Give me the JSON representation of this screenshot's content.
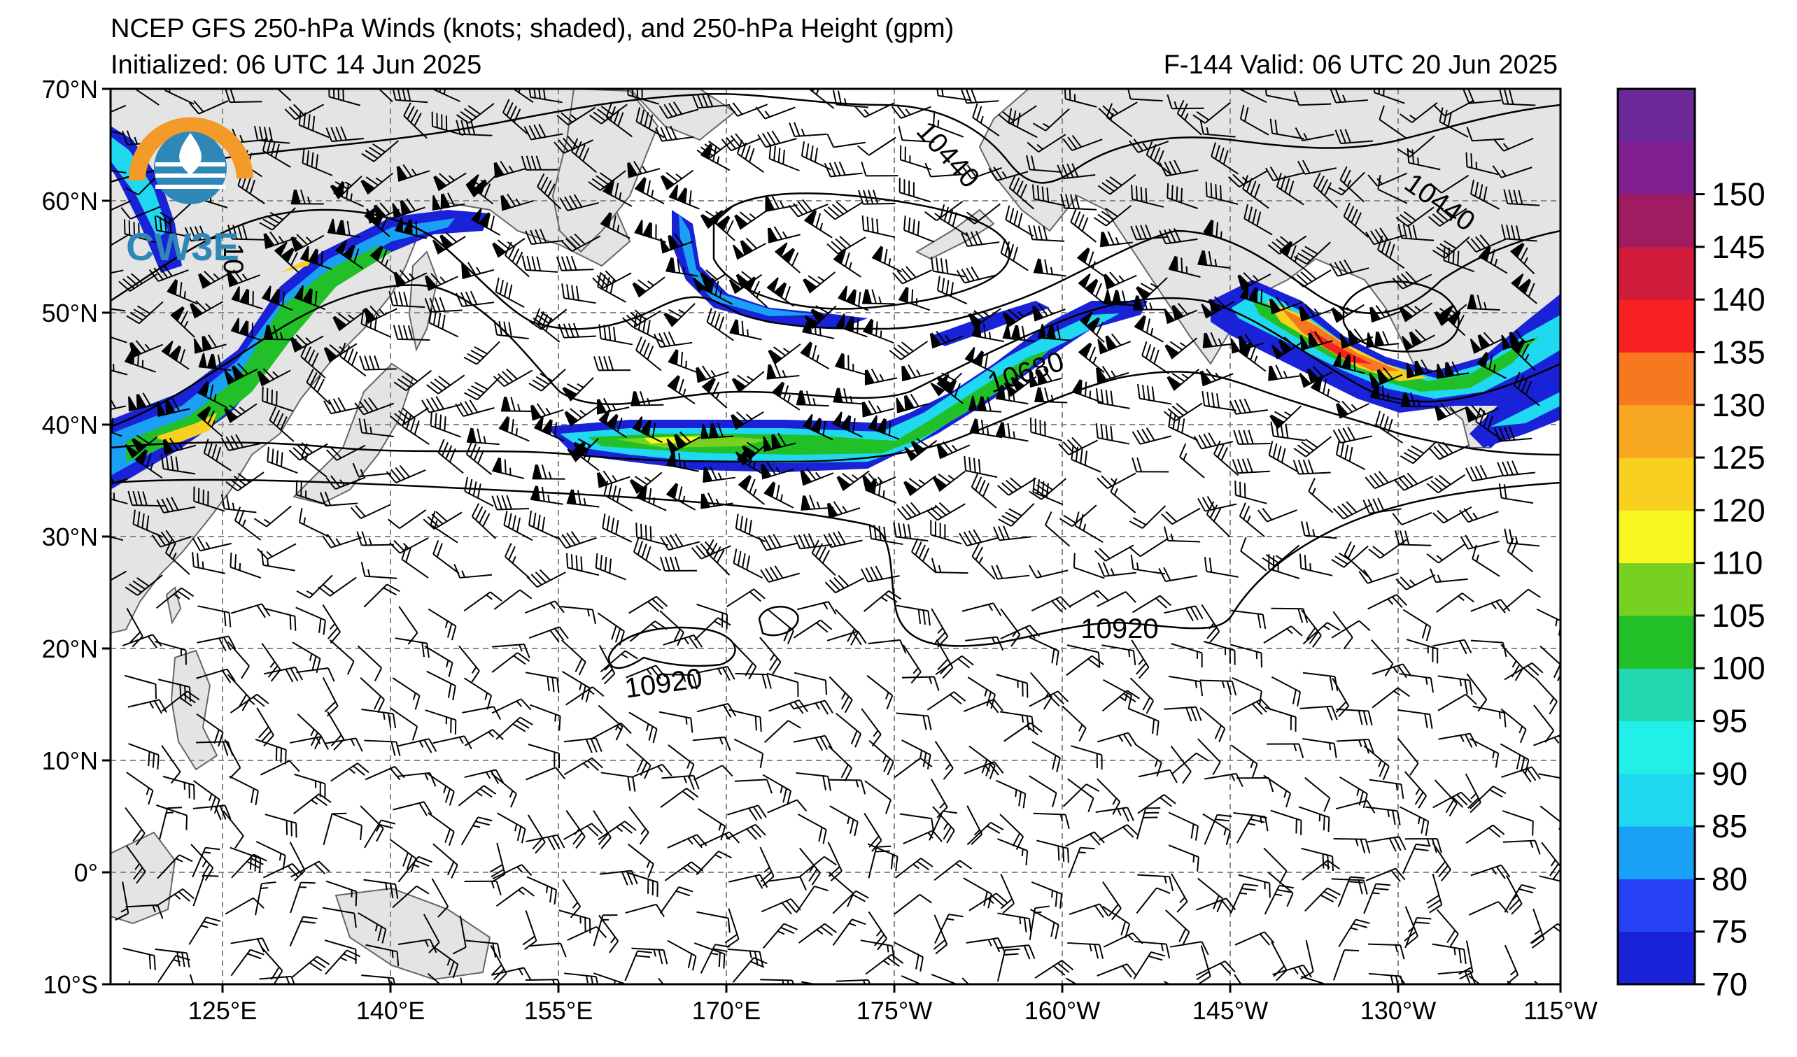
{
  "header": {
    "title": "NCEP GFS 250-hPa Winds (knots; shaded), and 250-hPa Height (gpm)",
    "initialized": "Initialized: 06 UTC 14 Jun 2025",
    "valid": "F-144  Valid: 06 UTC 20 Jun 2025"
  },
  "logo": {
    "text": "CW3E",
    "icon": "cw3e-logo-icon"
  },
  "map": {
    "lat_labels": [
      "70°N",
      "60°N",
      "50°N",
      "40°N",
      "30°N",
      "20°N",
      "10°N",
      "0°",
      "10°S"
    ],
    "lon_labels": [
      "125°E",
      "140°E",
      "155°E",
      "170°E",
      "175°W",
      "160°W",
      "145°W",
      "130°W",
      "115°W"
    ],
    "grid": "dashed",
    "land_color": "#e4e4e4",
    "coast_color": "#666666"
  },
  "contours": {
    "variable": "250-hPa Height (gpm)",
    "labels": [
      {
        "text": "10440"
      },
      {
        "text": "10440"
      },
      {
        "text": "10680"
      },
      {
        "text": "10920"
      },
      {
        "text": "10920"
      },
      {
        "text": "10"
      }
    ]
  },
  "colorbar": {
    "labels": [
      "70",
      "75",
      "80",
      "85",
      "90",
      "95",
      "100",
      "105",
      "110",
      "120",
      "125",
      "130",
      "135",
      "140",
      "145",
      "150"
    ],
    "colors": [
      "#1a22d8",
      "#2642f4",
      "#1aa0f4",
      "#20d8f0",
      "#20f0e8",
      "#22d8b0",
      "#22c028",
      "#78d020",
      "#f8f820",
      "#f8d020",
      "#f8a820",
      "#f87820",
      "#f82020",
      "#d01c3c",
      "#a01c60",
      "#802090",
      "#6c2898"
    ]
  }
}
